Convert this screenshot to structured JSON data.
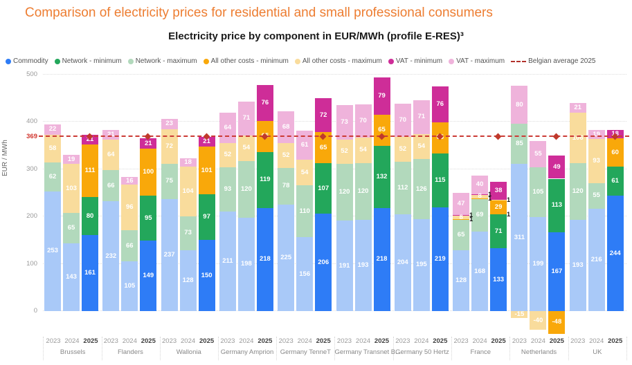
{
  "title": "Comparison of electricity prices for residential and small professional consumers",
  "subtitle": "Electricity price by component in EUR/MWh (profile E-RES)³",
  "palette": {
    "commodity": "#2E7CF6",
    "commodity_light": "#A9C9F8",
    "network_min": "#23A75B",
    "network_max": "#B2D9BC",
    "other_min": "#F9A80A",
    "other_max": "#F9DC9C",
    "vat_min": "#CE2D98",
    "vat_max": "#EFB3DB",
    "reference": "#CB3A35"
  },
  "legend": [
    {
      "key": "commodity",
      "label": "Commodity",
      "type": "dot"
    },
    {
      "key": "network_min",
      "label": "Network - minimum",
      "type": "dot"
    },
    {
      "key": "network_max",
      "label": "Network - maximum",
      "type": "dot"
    },
    {
      "key": "other_min",
      "label": "All other costs - minimum",
      "type": "dot"
    },
    {
      "key": "other_max",
      "label": "All other costs - maximum",
      "type": "dot"
    },
    {
      "key": "vat_min",
      "label": "VAT - minimum",
      "type": "dot"
    },
    {
      "key": "vat_max",
      "label": "VAT - maximum",
      "type": "dot"
    },
    {
      "key": "reference",
      "label": "Belgian average 2025",
      "type": "dash"
    }
  ],
  "chart_data": {
    "type": "bar",
    "stacked": true,
    "ylabel": "EUR / MWh",
    "ylim": [
      0,
      500
    ],
    "yticks": [
      0,
      100,
      200,
      300,
      400,
      500
    ],
    "grid": "dotted-horizontal",
    "legend_position": "top",
    "reference_line": {
      "series": "Belgian average 2025",
      "value": 369,
      "axis_label": "369"
    },
    "segment_order": [
      "commodity",
      "network_min",
      "network_max",
      "other_min",
      "other_max",
      "vat_min",
      "vat_max"
    ],
    "groups": [
      {
        "name": "Brussels",
        "bars": [
          {
            "year": "2023",
            "segments": [
              [
                "commodity_light",
                253
              ],
              [
                "network_max",
                62
              ],
              [
                "other_max",
                58
              ],
              [
                "vat_max",
                22
              ]
            ]
          },
          {
            "year": "2024",
            "segments": [
              [
                "commodity_light",
                143
              ],
              [
                "network_max",
                65
              ],
              [
                "other_max",
                103
              ],
              [
                "vat_max",
                19
              ]
            ]
          },
          {
            "year": "2025",
            "segments": [
              [
                "commodity",
                161
              ],
              [
                "network_min",
                80
              ],
              [
                "other_min",
                111
              ],
              [
                "vat_min",
                21
              ]
            ]
          }
        ]
      },
      {
        "name": "Flanders",
        "bars": [
          {
            "year": "2023",
            "segments": [
              [
                "commodity_light",
                232
              ],
              [
                "network_max",
                66
              ],
              [
                "other_max",
                64
              ],
              [
                "vat_max",
                21
              ]
            ]
          },
          {
            "year": "2024",
            "segments": [
              [
                "commodity_light",
                105
              ],
              [
                "network_max",
                66
              ],
              [
                "other_max",
                96
              ],
              [
                "vat_max",
                16
              ]
            ]
          },
          {
            "year": "2025",
            "segments": [
              [
                "commodity",
                149
              ],
              [
                "network_min",
                95
              ],
              [
                "other_min",
                100
              ],
              [
                "vat_min",
                21
              ]
            ]
          }
        ]
      },
      {
        "name": "Wallonia",
        "bars": [
          {
            "year": "2023",
            "segments": [
              [
                "commodity_light",
                237
              ],
              [
                "network_max",
                75
              ],
              [
                "other_max",
                72
              ],
              [
                "vat_max",
                23
              ]
            ]
          },
          {
            "year": "2024",
            "segments": [
              [
                "commodity_light",
                128
              ],
              [
                "network_max",
                73
              ],
              [
                "other_max",
                104
              ],
              [
                "vat_max",
                18
              ]
            ]
          },
          {
            "year": "2025",
            "segments": [
              [
                "commodity",
                150
              ],
              [
                "network_min",
                97
              ],
              [
                "other_min",
                101
              ],
              [
                "vat_min",
                21
              ]
            ]
          }
        ]
      },
      {
        "name": "Germany Amprion",
        "bars": [
          {
            "year": "2023",
            "segments": [
              [
                "commodity_light",
                211
              ],
              [
                "network_max",
                93
              ],
              [
                "other_max",
                52
              ],
              [
                "vat_max",
                64
              ]
            ]
          },
          {
            "year": "2024",
            "segments": [
              [
                "commodity_light",
                198
              ],
              [
                "network_max",
                120
              ],
              [
                "other_max",
                54
              ],
              [
                "vat_max",
                71
              ]
            ]
          },
          {
            "year": "2025",
            "segments": [
              [
                "commodity",
                218
              ],
              [
                "network_min",
                119
              ],
              [
                "other_min",
                65
              ],
              [
                "vat_min",
                76
              ]
            ]
          }
        ]
      },
      {
        "name": "Germany TenneT",
        "bars": [
          {
            "year": "2023",
            "segments": [
              [
                "commodity_light",
                225
              ],
              [
                "network_max",
                78
              ],
              [
                "other_max",
                52
              ],
              [
                "vat_max",
                68
              ]
            ]
          },
          {
            "year": "2024",
            "segments": [
              [
                "commodity_light",
                156
              ],
              [
                "network_max",
                110
              ],
              [
                "other_max",
                54
              ],
              [
                "vat_max",
                61
              ]
            ]
          },
          {
            "year": "2025",
            "segments": [
              [
                "commodity",
                206
              ],
              [
                "network_min",
                107
              ],
              [
                "other_min",
                65
              ],
              [
                "vat_min",
                72
              ]
            ]
          }
        ]
      },
      {
        "name": "Germany Transnet B...",
        "bars": [
          {
            "year": "2023",
            "segments": [
              [
                "commodity_light",
                191
              ],
              [
                "network_max",
                120
              ],
              [
                "other_max",
                52
              ],
              [
                "vat_max",
                73
              ]
            ]
          },
          {
            "year": "2024",
            "segments": [
              [
                "commodity_light",
                193
              ],
              [
                "network_max",
                120
              ],
              [
                "other_max",
                54
              ],
              [
                "vat_max",
                70
              ]
            ]
          },
          {
            "year": "2025",
            "segments": [
              [
                "commodity",
                218
              ],
              [
                "network_min",
                132
              ],
              [
                "other_min",
                65
              ],
              [
                "vat_min",
                79
              ]
            ]
          }
        ]
      },
      {
        "name": "Germany 50 Hertz",
        "bars": [
          {
            "year": "2023",
            "segments": [
              [
                "commodity_light",
                204
              ],
              [
                "network_max",
                112
              ],
              [
                "other_max",
                52
              ],
              [
                "vat_max",
                70
              ]
            ]
          },
          {
            "year": "2024",
            "segments": [
              [
                "commodity_light",
                195
              ],
              [
                "network_max",
                126
              ],
              [
                "other_max",
                54
              ],
              [
                "vat_max",
                71
              ]
            ]
          },
          {
            "year": "2025",
            "segments": [
              [
                "commodity",
                219
              ],
              [
                "network_min",
                115
              ],
              [
                "other_min",
                65
              ],
              [
                "vat_min",
                76
              ]
            ]
          }
        ]
      },
      {
        "name": "France",
        "bars": [
          {
            "year": "2023",
            "segments": [
              [
                "commodity_light",
                128
              ],
              [
                "network_max",
                65
              ],
              [
                "other_min",
                1
              ],
              [
                "other_max",
                8
              ],
              [
                "vat_min",
                1
              ],
              [
                "vat_max",
                47
              ]
            ]
          },
          {
            "year": "2024",
            "segments": [
              [
                "commodity_light",
                168
              ],
              [
                "network_max",
                69
              ],
              [
                "other_min",
                1
              ],
              [
                "other_max",
                8
              ],
              [
                "vat_min",
                1
              ],
              [
                "vat_max",
                40
              ]
            ]
          },
          {
            "year": "2025",
            "segments": [
              [
                "commodity",
                133
              ],
              [
                "network_min",
                71
              ],
              [
                "network_max",
                1
              ],
              [
                "other_min",
                29
              ],
              [
                "other_max",
                1
              ],
              [
                "vat_min",
                38
              ]
            ]
          }
        ]
      },
      {
        "name": "Netherlands",
        "bars": [
          {
            "year": "2023",
            "segments": [
              [
                "commodity_light",
                311
              ],
              [
                "network_max",
                85
              ],
              [
                "vat_max",
                80
              ],
              [
                "other_max",
                -15
              ]
            ]
          },
          {
            "year": "2024",
            "segments": [
              [
                "commodity_light",
                199
              ],
              [
                "network_max",
                105
              ],
              [
                "vat_max",
                55
              ],
              [
                "other_max",
                -40
              ]
            ]
          },
          {
            "year": "2025",
            "segments": [
              [
                "commodity",
                167
              ],
              [
                "network_min",
                113
              ],
              [
                "vat_min",
                49
              ],
              [
                "other_min",
                -48
              ]
            ]
          }
        ]
      },
      {
        "name": "UK",
        "bars": [
          {
            "year": "2023",
            "segments": [
              [
                "commodity_light",
                193
              ],
              [
                "network_max",
                120
              ],
              [
                "other_max",
                106
              ],
              [
                "vat_max",
                21
              ]
            ]
          },
          {
            "year": "2024",
            "segments": [
              [
                "commodity_light",
                216
              ],
              [
                "network_max",
                55
              ],
              [
                "other_max",
                93
              ],
              [
                "vat_max",
                19
              ]
            ]
          },
          {
            "year": "2025",
            "segments": [
              [
                "commodity",
                244
              ],
              [
                "network_min",
                61
              ],
              [
                "other_min",
                60
              ],
              [
                "vat_min",
                18
              ]
            ]
          }
        ]
      }
    ]
  }
}
